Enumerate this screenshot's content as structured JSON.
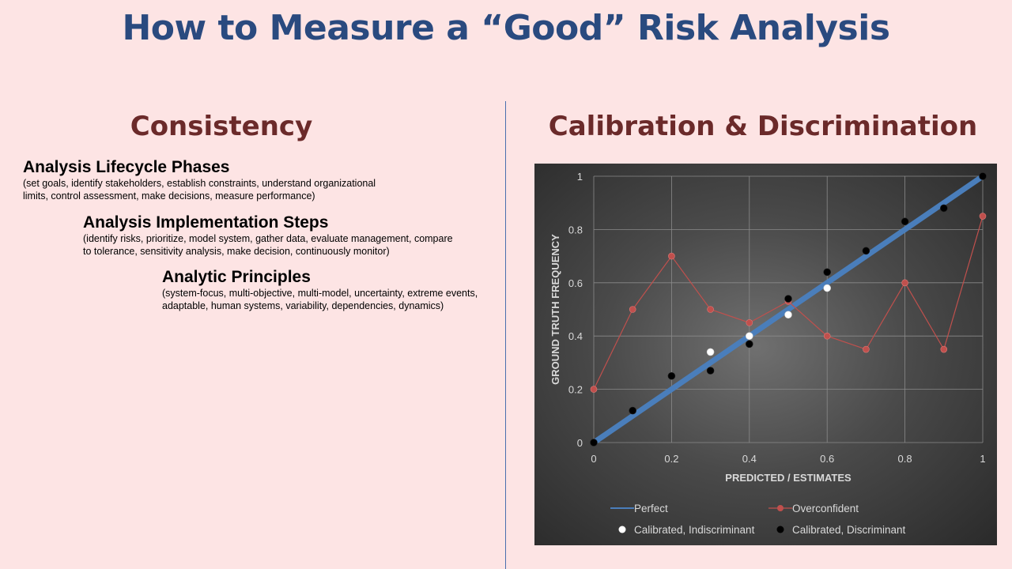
{
  "slide": {
    "title": "How to Measure a “Good” Risk Analysis",
    "left_heading": "Consistency",
    "right_heading": "Calibration & Discrimination",
    "items": [
      {
        "heading": "Analysis Lifecycle Phases",
        "desc": "(set goals, identify stakeholders, establish constraints, understand organizational limits, control assessment, make decisions, measure performance)"
      },
      {
        "heading": "Analysis Implementation Steps",
        "desc": "(identify risks, prioritize, model system, gather data, evaluate management, compare to tolerance, sensitivity analysis, make decision, continuously monitor)"
      },
      {
        "heading": "Analytic Principles",
        "desc": "(system-focus, multi-objective, multi-model, uncertainty, extreme events, adaptable, human systems, variability, dependencies, dynamics)"
      }
    ]
  },
  "chart_data": {
    "type": "scatter",
    "xlabel": "PREDICTED / ESTIMATES",
    "ylabel": "GROUND TRUTH FREQUENCY",
    "xlim": [
      0,
      1
    ],
    "ylim": [
      0,
      1
    ],
    "xticks": [
      "0",
      "0.2",
      "0.4",
      "0.6",
      "0.8",
      "1"
    ],
    "yticks": [
      "0",
      "0.2",
      "0.4",
      "0.6",
      "0.8",
      "1"
    ],
    "grid": true,
    "legend_position": "bottom",
    "series": [
      {
        "name": "Perfect",
        "kind": "line",
        "color": "#4a7ebb",
        "x": [
          0,
          1
        ],
        "y": [
          0,
          1
        ]
      },
      {
        "name": "Overconfident",
        "kind": "line-markers",
        "color": "#c0504d",
        "x": [
          0,
          0.1,
          0.2,
          0.3,
          0.4,
          0.5,
          0.6,
          0.7,
          0.8,
          0.9,
          1.0
        ],
        "y": [
          0.2,
          0.5,
          0.7,
          0.5,
          0.45,
          0.53,
          0.4,
          0.35,
          0.6,
          0.35,
          0.85
        ]
      },
      {
        "name": "Calibrated, Indiscriminant",
        "kind": "markers",
        "color": "#ffffff",
        "x": [
          0.3,
          0.4,
          0.5,
          0.6
        ],
        "y": [
          0.34,
          0.4,
          0.48,
          0.58
        ]
      },
      {
        "name": "Calibrated, Discriminant",
        "kind": "markers",
        "color": "#000000",
        "x": [
          0,
          0.1,
          0.2,
          0.3,
          0.4,
          0.5,
          0.6,
          0.7,
          0.8,
          0.9,
          1.0
        ],
        "y": [
          0,
          0.12,
          0.25,
          0.27,
          0.37,
          0.54,
          0.64,
          0.72,
          0.83,
          0.88,
          1.0
        ]
      }
    ]
  }
}
